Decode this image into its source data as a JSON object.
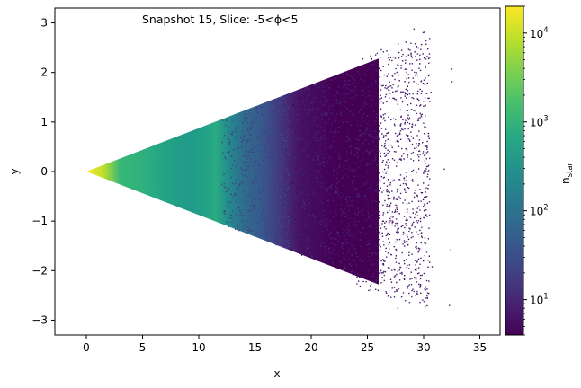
{
  "chart_data": {
    "type": "heatmap",
    "title": "",
    "annotation": "Snapshot 15, Slice: -5<ϕ<5",
    "xlabel": "x",
    "ylabel": "y",
    "xlim": [
      -2.8,
      36.8
    ],
    "ylim": [
      -3.3,
      3.3
    ],
    "xticks": [
      0,
      5,
      10,
      15,
      20,
      25,
      30,
      35
    ],
    "yticks": [
      -3,
      -2,
      -1,
      0,
      1,
      2,
      3
    ],
    "wedge": {
      "apex": [
        0,
        0
      ],
      "upper_edge_end": [
        26.0,
        2.28
      ],
      "lower_edge_end": [
        26.0,
        -2.28
      ],
      "scatter_tail_max_x": 32.7
    },
    "density_profile": [
      {
        "x": 0.0,
        "n_star": 20000
      },
      {
        "x": 1.5,
        "n_star": 9000
      },
      {
        "x": 3.0,
        "n_star": 1200
      },
      {
        "x": 5.0,
        "n_star": 900
      },
      {
        "x": 7.0,
        "n_star": 550
      },
      {
        "x": 9.0,
        "n_star": 400
      },
      {
        "x": 10.5,
        "n_star": 500
      },
      {
        "x": 11.5,
        "n_star": 750
      },
      {
        "x": 12.5,
        "n_star": 280
      },
      {
        "x": 14.0,
        "n_star": 80
      },
      {
        "x": 15.5,
        "n_star": 45
      },
      {
        "x": 17.0,
        "n_star": 18
      },
      {
        "x": 19.0,
        "n_star": 6
      },
      {
        "x": 22.0,
        "n_star": 4
      }
    ],
    "colorbar": {
      "label": "n",
      "label_subscript": "star",
      "scale": "log",
      "range": [
        4,
        20000
      ],
      "ticks": [
        {
          "value": 10,
          "base": "10",
          "exp": "1"
        },
        {
          "value": 100,
          "base": "10",
          "exp": "2"
        },
        {
          "value": 1000,
          "base": "10",
          "exp": "3"
        },
        {
          "value": 10000,
          "base": "10",
          "exp": "4"
        }
      ],
      "colormap": "viridis"
    }
  }
}
